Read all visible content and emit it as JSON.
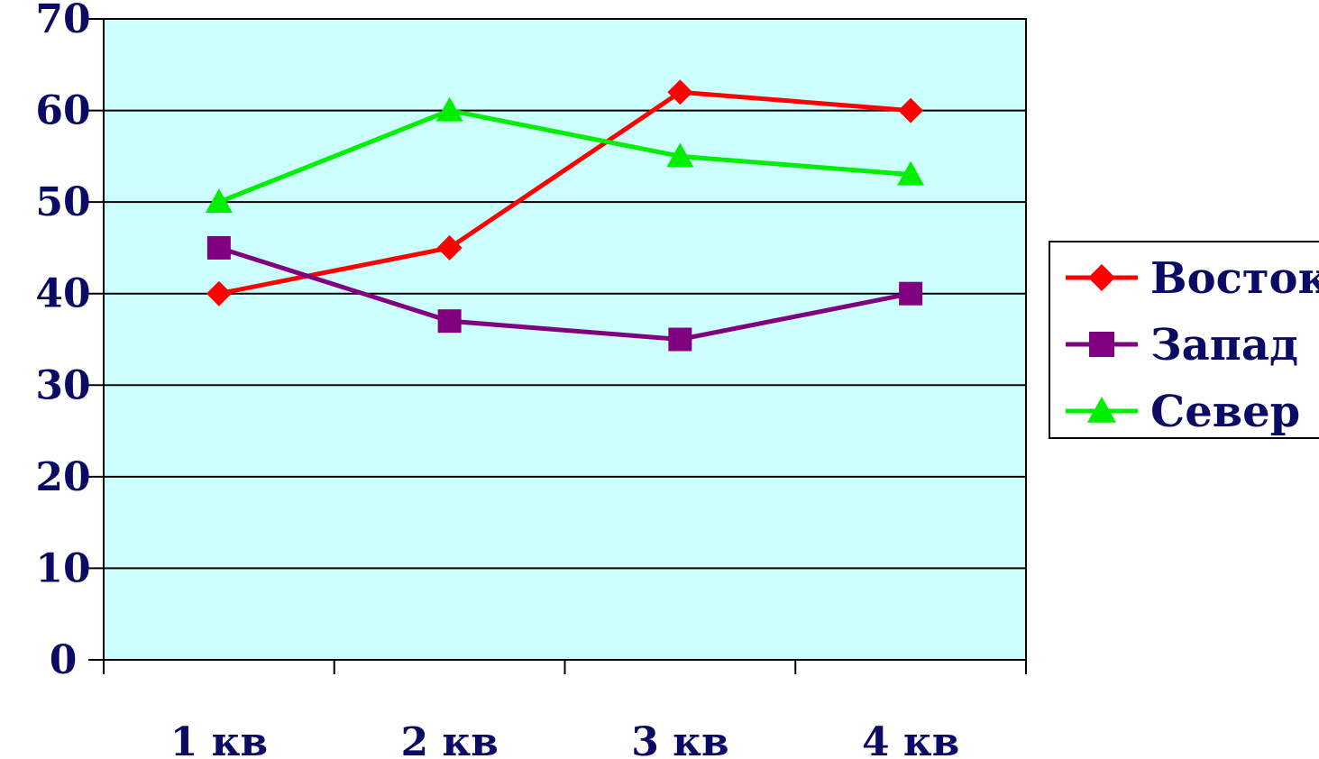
{
  "chart_data": {
    "type": "line",
    "categories": [
      "1 кв",
      "2 кв",
      "3 кв",
      "4 кв"
    ],
    "ylim": [
      0,
      70
    ],
    "yticks": [
      0,
      10,
      20,
      30,
      40,
      50,
      60,
      70
    ],
    "grid": true,
    "legend_position": "right",
    "plot_background": "#ccffff",
    "series": [
      {
        "name": "Восток",
        "values": [
          40,
          45,
          62,
          60
        ],
        "color": "#ff0000",
        "marker": "diamond"
      },
      {
        "name": "Запад",
        "values": [
          45,
          37,
          35,
          40
        ],
        "color": "#800080",
        "marker": "square"
      },
      {
        "name": "Север",
        "values": [
          50,
          60,
          55,
          53
        ],
        "color": "#00ee00",
        "marker": "triangle"
      }
    ]
  }
}
